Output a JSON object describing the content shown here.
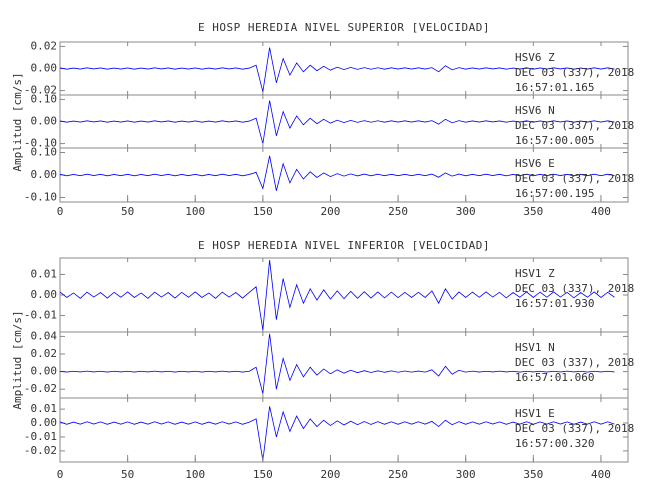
{
  "chart_data": [
    {
      "type": "line",
      "title": "E HOSP HEREDIA NIVEL SUPERIOR [VELOCIDAD]",
      "y_label": "Amplitud [cm/s]",
      "xlim": [
        0,
        420
      ],
      "xticks": [
        0,
        50,
        100,
        150,
        200,
        250,
        300,
        350,
        400
      ],
      "x": [
        0,
        5,
        10,
        15,
        20,
        25,
        30,
        35,
        40,
        45,
        50,
        55,
        60,
        65,
        70,
        75,
        80,
        85,
        90,
        95,
        100,
        105,
        110,
        115,
        120,
        125,
        130,
        135,
        140,
        145,
        150,
        155,
        160,
        165,
        170,
        175,
        180,
        185,
        190,
        195,
        200,
        205,
        210,
        215,
        220,
        225,
        230,
        235,
        240,
        245,
        250,
        255,
        260,
        265,
        270,
        275,
        280,
        285,
        290,
        295,
        300,
        305,
        310,
        315,
        320,
        325,
        330,
        335,
        340,
        345,
        350,
        355,
        360,
        365,
        370,
        375,
        380,
        385,
        390,
        395,
        400,
        405,
        410
      ],
      "panels": [
        {
          "station": "HSV6   Z",
          "date": "DEC 03 (337), 2018",
          "time": "16:57:01.165",
          "ylim": [
            -0.024,
            0.024
          ],
          "yticks": [
            {
              "value": 0.02,
              "label": "0.02"
            },
            {
              "value": 0,
              "label": "0.00"
            },
            {
              "value": -0.02,
              "label": "-0.02"
            }
          ],
          "series": [
            {
              "name": "HSV6 Z",
              "color": "#0000ff",
              "values": [
                0.0005,
                -0.0006,
                0.0004,
                -0.0005,
                0.0006,
                -0.0004,
                0.0005,
                -0.0006,
                0.0004,
                -0.0005,
                0.0005,
                -0.0006,
                0.0004,
                -0.0005,
                0.0006,
                -0.0004,
                0.0005,
                -0.0006,
                0.0004,
                -0.0005,
                0.0005,
                -0.0006,
                0.0004,
                -0.0005,
                0.0006,
                -0.0004,
                0.0005,
                -0.0006,
                0.0004,
                0.003,
                -0.021,
                0.019,
                -0.013,
                0.009,
                -0.006,
                0.005,
                -0.003,
                0.003,
                -0.002,
                0.002,
                -0.0015,
                0.0012,
                -0.001,
                0.001,
                -0.0008,
                0.0008,
                -0.0007,
                0.0007,
                -0.0006,
                0.0006,
                -0.0005,
                0.0006,
                -0.0005,
                0.0006,
                -0.0005,
                0.0008,
                -0.003,
                0.0025,
                -0.0012,
                0.0008,
                -0.0006,
                0.0005,
                -0.0005,
                0.0006,
                -0.0004,
                0.0005,
                -0.0006,
                0.0004,
                -0.0005,
                0.0006,
                -0.0006,
                0.0005,
                -0.0005,
                0.0006,
                -0.0004,
                0.0005,
                -0.0006,
                0.0004,
                -0.0005,
                0.0006,
                -0.0005,
                0.0006,
                -0.0005
              ]
            }
          ]
        },
        {
          "station": "HSV6   N",
          "date": "DEC 03 (337), 2018",
          "time": "16:57:00.005",
          "ylim": [
            -0.12,
            0.12
          ],
          "yticks": [
            {
              "value": 0.1,
              "label": "0.10"
            },
            {
              "value": 0,
              "label": "0.00"
            },
            {
              "value": -0.1,
              "label": "-0.10"
            }
          ],
          "series": [
            {
              "name": "HSV6 N",
              "color": "#0000ff",
              "values": [
                0.0025,
                -0.003,
                0.002,
                -0.0025,
                0.003,
                -0.002,
                0.0025,
                -0.003,
                0.002,
                -0.0025,
                0.0025,
                -0.003,
                0.002,
                -0.0025,
                0.003,
                -0.002,
                0.0025,
                -0.003,
                0.002,
                -0.0025,
                0.0025,
                -0.003,
                0.002,
                -0.0025,
                0.003,
                -0.002,
                0.0025,
                -0.003,
                0.002,
                0.015,
                -0.1,
                0.095,
                -0.065,
                0.045,
                -0.03,
                0.025,
                -0.015,
                0.015,
                -0.01,
                0.01,
                -0.0075,
                0.006,
                -0.005,
                0.005,
                -0.004,
                0.004,
                -0.0035,
                0.0035,
                -0.003,
                0.003,
                -0.0025,
                0.003,
                -0.0025,
                0.003,
                -0.0025,
                0.004,
                -0.012,
                0.01,
                -0.006,
                0.004,
                -0.003,
                0.0025,
                -0.0025,
                0.003,
                -0.002,
                0.0025,
                -0.003,
                0.002,
                -0.0025,
                0.003,
                -0.003,
                0.0025,
                -0.0025,
                0.003,
                -0.002,
                0.0025,
                -0.003,
                0.002,
                -0.0025,
                0.003,
                -0.0025,
                0.003,
                -0.0025
              ]
            }
          ]
        },
        {
          "station": "HSV6   E",
          "date": "DEC 03 (337), 2018",
          "time": "16:57:00.195",
          "ylim": [
            -0.12,
            0.12
          ],
          "yticks": [
            {
              "value": 0.1,
              "label": "0.10"
            },
            {
              "value": 0,
              "label": "0.00"
            },
            {
              "value": -0.1,
              "label": "-0.10"
            }
          ],
          "series": [
            {
              "name": "HSV6 E",
              "color": "#0000ff",
              "values": [
                0.003,
                -0.0035,
                0.0025,
                -0.003,
                0.0035,
                -0.0025,
                0.003,
                -0.0035,
                0.0025,
                -0.003,
                0.003,
                -0.0035,
                0.0025,
                -0.003,
                0.0035,
                -0.0025,
                0.003,
                -0.0035,
                0.0025,
                -0.003,
                0.003,
                -0.0035,
                0.0025,
                -0.003,
                0.0035,
                -0.0025,
                0.003,
                -0.0035,
                0.0025,
                0.012,
                -0.06,
                0.085,
                -0.07,
                0.05,
                -0.035,
                0.025,
                -0.018,
                0.014,
                -0.011,
                0.009,
                -0.007,
                0.006,
                -0.005,
                0.005,
                -0.004,
                0.004,
                -0.0035,
                0.0035,
                -0.003,
                0.003,
                -0.003,
                0.003,
                -0.003,
                0.003,
                -0.003,
                0.004,
                -0.01,
                0.009,
                -0.005,
                0.004,
                -0.0035,
                0.003,
                -0.003,
                0.0035,
                -0.0025,
                0.003,
                -0.0035,
                0.0025,
                -0.003,
                0.0035,
                -0.0035,
                0.003,
                -0.003,
                0.0035,
                -0.0025,
                0.003,
                -0.0035,
                0.0025,
                -0.003,
                0.0035,
                -0.003,
                0.0035,
                -0.003
              ]
            }
          ]
        }
      ]
    },
    {
      "type": "line",
      "title": "E HOSP HEREDIA NIVEL INFERIOR [VELOCIDAD]",
      "y_label": "Amplitud [cm/s]",
      "xlim": [
        0,
        420
      ],
      "xticks": [
        0,
        50,
        100,
        150,
        200,
        250,
        300,
        350,
        400
      ],
      "x": [
        0,
        5,
        10,
        15,
        20,
        25,
        30,
        35,
        40,
        45,
        50,
        55,
        60,
        65,
        70,
        75,
        80,
        85,
        90,
        95,
        100,
        105,
        110,
        115,
        120,
        125,
        130,
        135,
        140,
        145,
        150,
        155,
        160,
        165,
        170,
        175,
        180,
        185,
        190,
        195,
        200,
        205,
        210,
        215,
        220,
        225,
        230,
        235,
        240,
        245,
        250,
        255,
        260,
        265,
        270,
        275,
        280,
        285,
        290,
        295,
        300,
        305,
        310,
        315,
        320,
        325,
        330,
        335,
        340,
        345,
        350,
        355,
        360,
        365,
        370,
        375,
        380,
        385,
        390,
        395,
        400,
        405,
        410
      ],
      "panels": [
        {
          "station": "HSV1   Z",
          "date": "DEC 03 (337), 2018",
          "time": "16:57:01.930",
          "ylim": [
            -0.018,
            0.018
          ],
          "yticks": [
            {
              "value": 0.01,
              "label": "0.01"
            },
            {
              "value": 0,
              "label": "0.00"
            },
            {
              "value": -0.01,
              "label": "-0.01"
            }
          ],
          "series": [
            {
              "name": "HSV1 Z",
              "color": "#0000ff",
              "values": [
                0.0015,
                -0.0012,
                0.001,
                -0.0016,
                0.0014,
                -0.001,
                0.0012,
                -0.0015,
                0.0013,
                -0.0011,
                0.0015,
                -0.0012,
                0.001,
                -0.0016,
                0.0014,
                -0.001,
                0.0012,
                -0.0015,
                0.0013,
                -0.0011,
                0.0015,
                -0.0012,
                0.001,
                -0.0016,
                0.0014,
                -0.001,
                0.0012,
                -0.0015,
                0.0013,
                0.004,
                -0.017,
                0.017,
                -0.012,
                0.008,
                -0.006,
                0.005,
                -0.004,
                0.003,
                -0.0025,
                0.0025,
                -0.002,
                0.002,
                -0.0018,
                0.0018,
                -0.0016,
                0.0016,
                -0.0015,
                0.0015,
                -0.0014,
                0.0014,
                -0.0013,
                0.0013,
                -0.0012,
                0.0013,
                -0.0012,
                0.002,
                -0.004,
                0.003,
                -0.002,
                0.0015,
                -0.0012,
                0.0014,
                -0.0011,
                0.0015,
                -0.001,
                0.0013,
                -0.0014,
                0.0012,
                -0.0011,
                0.0015,
                -0.0012,
                0.0014,
                -0.0011,
                0.0015,
                -0.001,
                0.0013,
                -0.0014,
                0.0012,
                -0.0011,
                0.0015,
                -0.0012,
                0.0013,
                -0.0011
              ]
            }
          ]
        },
        {
          "station": "HSV1   N",
          "date": "DEC 03 (337), 2018",
          "time": "16:57:01.060",
          "ylim": [
            -0.03,
            0.045
          ],
          "yticks": [
            {
              "value": 0.04,
              "label": "0.04"
            },
            {
              "value": 0.02,
              "label": "0.02"
            },
            {
              "value": 0,
              "label": "0.00"
            },
            {
              "value": -0.02,
              "label": "-0.02"
            }
          ],
          "series": [
            {
              "name": "HSV1 N",
              "color": "#0000ff",
              "values": [
                0.0004,
                -0.0005,
                0.0004,
                -0.0004,
                0.0005,
                -0.0004,
                0.0004,
                -0.0005,
                0.0004,
                -0.0004,
                0.0004,
                -0.0005,
                0.0004,
                -0.0004,
                0.0005,
                -0.0004,
                0.0004,
                -0.0005,
                0.0004,
                -0.0004,
                0.0004,
                -0.0005,
                0.0004,
                -0.0004,
                0.0005,
                -0.0004,
                0.0004,
                -0.0005,
                0.0004,
                0.005,
                -0.025,
                0.043,
                -0.02,
                0.015,
                -0.01,
                0.008,
                -0.006,
                0.005,
                -0.004,
                0.003,
                -0.0025,
                0.002,
                -0.0018,
                0.0015,
                -0.0012,
                0.001,
                -0.001,
                0.0009,
                -0.0008,
                0.0008,
                -0.0007,
                0.0007,
                -0.0006,
                0.0006,
                -0.0006,
                0.002,
                -0.005,
                0.006,
                -0.003,
                0.0015,
                -0.0006,
                0.0005,
                -0.0005,
                0.0004,
                -0.0004,
                0.0005,
                -0.0004,
                0.0004,
                -0.0005,
                0.0004,
                -0.0004,
                0.0004,
                -0.0005,
                0.0004,
                -0.0004,
                0.0005,
                -0.0004,
                0.0004,
                -0.0005,
                0.0004,
                -0.0004,
                0.0004,
                -0.0004
              ]
            }
          ]
        },
        {
          "station": "HSV1   E",
          "date": "DEC 03 (337), 2018",
          "time": "16:57:00.320",
          "ylim": [
            -0.028,
            0.018
          ],
          "yticks": [
            {
              "value": 0.01,
              "label": "0.01"
            },
            {
              "value": 0,
              "label": "0.00"
            },
            {
              "value": -0.01,
              "label": "-0.01"
            },
            {
              "value": -0.02,
              "label": "-0.02"
            }
          ],
          "series": [
            {
              "name": "HSV1 E",
              "color": "#0000ff",
              "values": [
                0.0008,
                -0.0009,
                0.0007,
                -0.0008,
                0.0009,
                -0.0007,
                0.0008,
                -0.0009,
                0.0007,
                -0.0008,
                0.0008,
                -0.0009,
                0.0007,
                -0.0008,
                0.0009,
                -0.0007,
                0.0008,
                -0.0009,
                0.0007,
                -0.0008,
                0.0008,
                -0.0009,
                0.0007,
                -0.0008,
                0.0009,
                -0.0007,
                0.0008,
                -0.0009,
                0.0007,
                0.003,
                -0.027,
                0.012,
                -0.01,
                0.008,
                -0.006,
                0.005,
                -0.004,
                0.003,
                -0.0025,
                0.002,
                -0.0018,
                0.0016,
                -0.0014,
                0.0013,
                -0.0012,
                0.0011,
                -0.001,
                0.001,
                -0.0009,
                0.0009,
                -0.0009,
                0.0009,
                -0.0008,
                0.0009,
                -0.0008,
                0.0012,
                -0.0025,
                0.002,
                -0.0012,
                0.001,
                -0.0009,
                0.0008,
                -0.0008,
                0.0009,
                -0.0007,
                0.0008,
                -0.0009,
                0.0007,
                -0.0008,
                0.0009,
                -0.0009,
                0.0008,
                -0.0008,
                0.0009,
                -0.0007,
                0.0008,
                -0.0009,
                0.0007,
                -0.0008,
                0.0009,
                -0.0008,
                0.0009,
                -0.0008
              ]
            }
          ]
        }
      ]
    }
  ]
}
